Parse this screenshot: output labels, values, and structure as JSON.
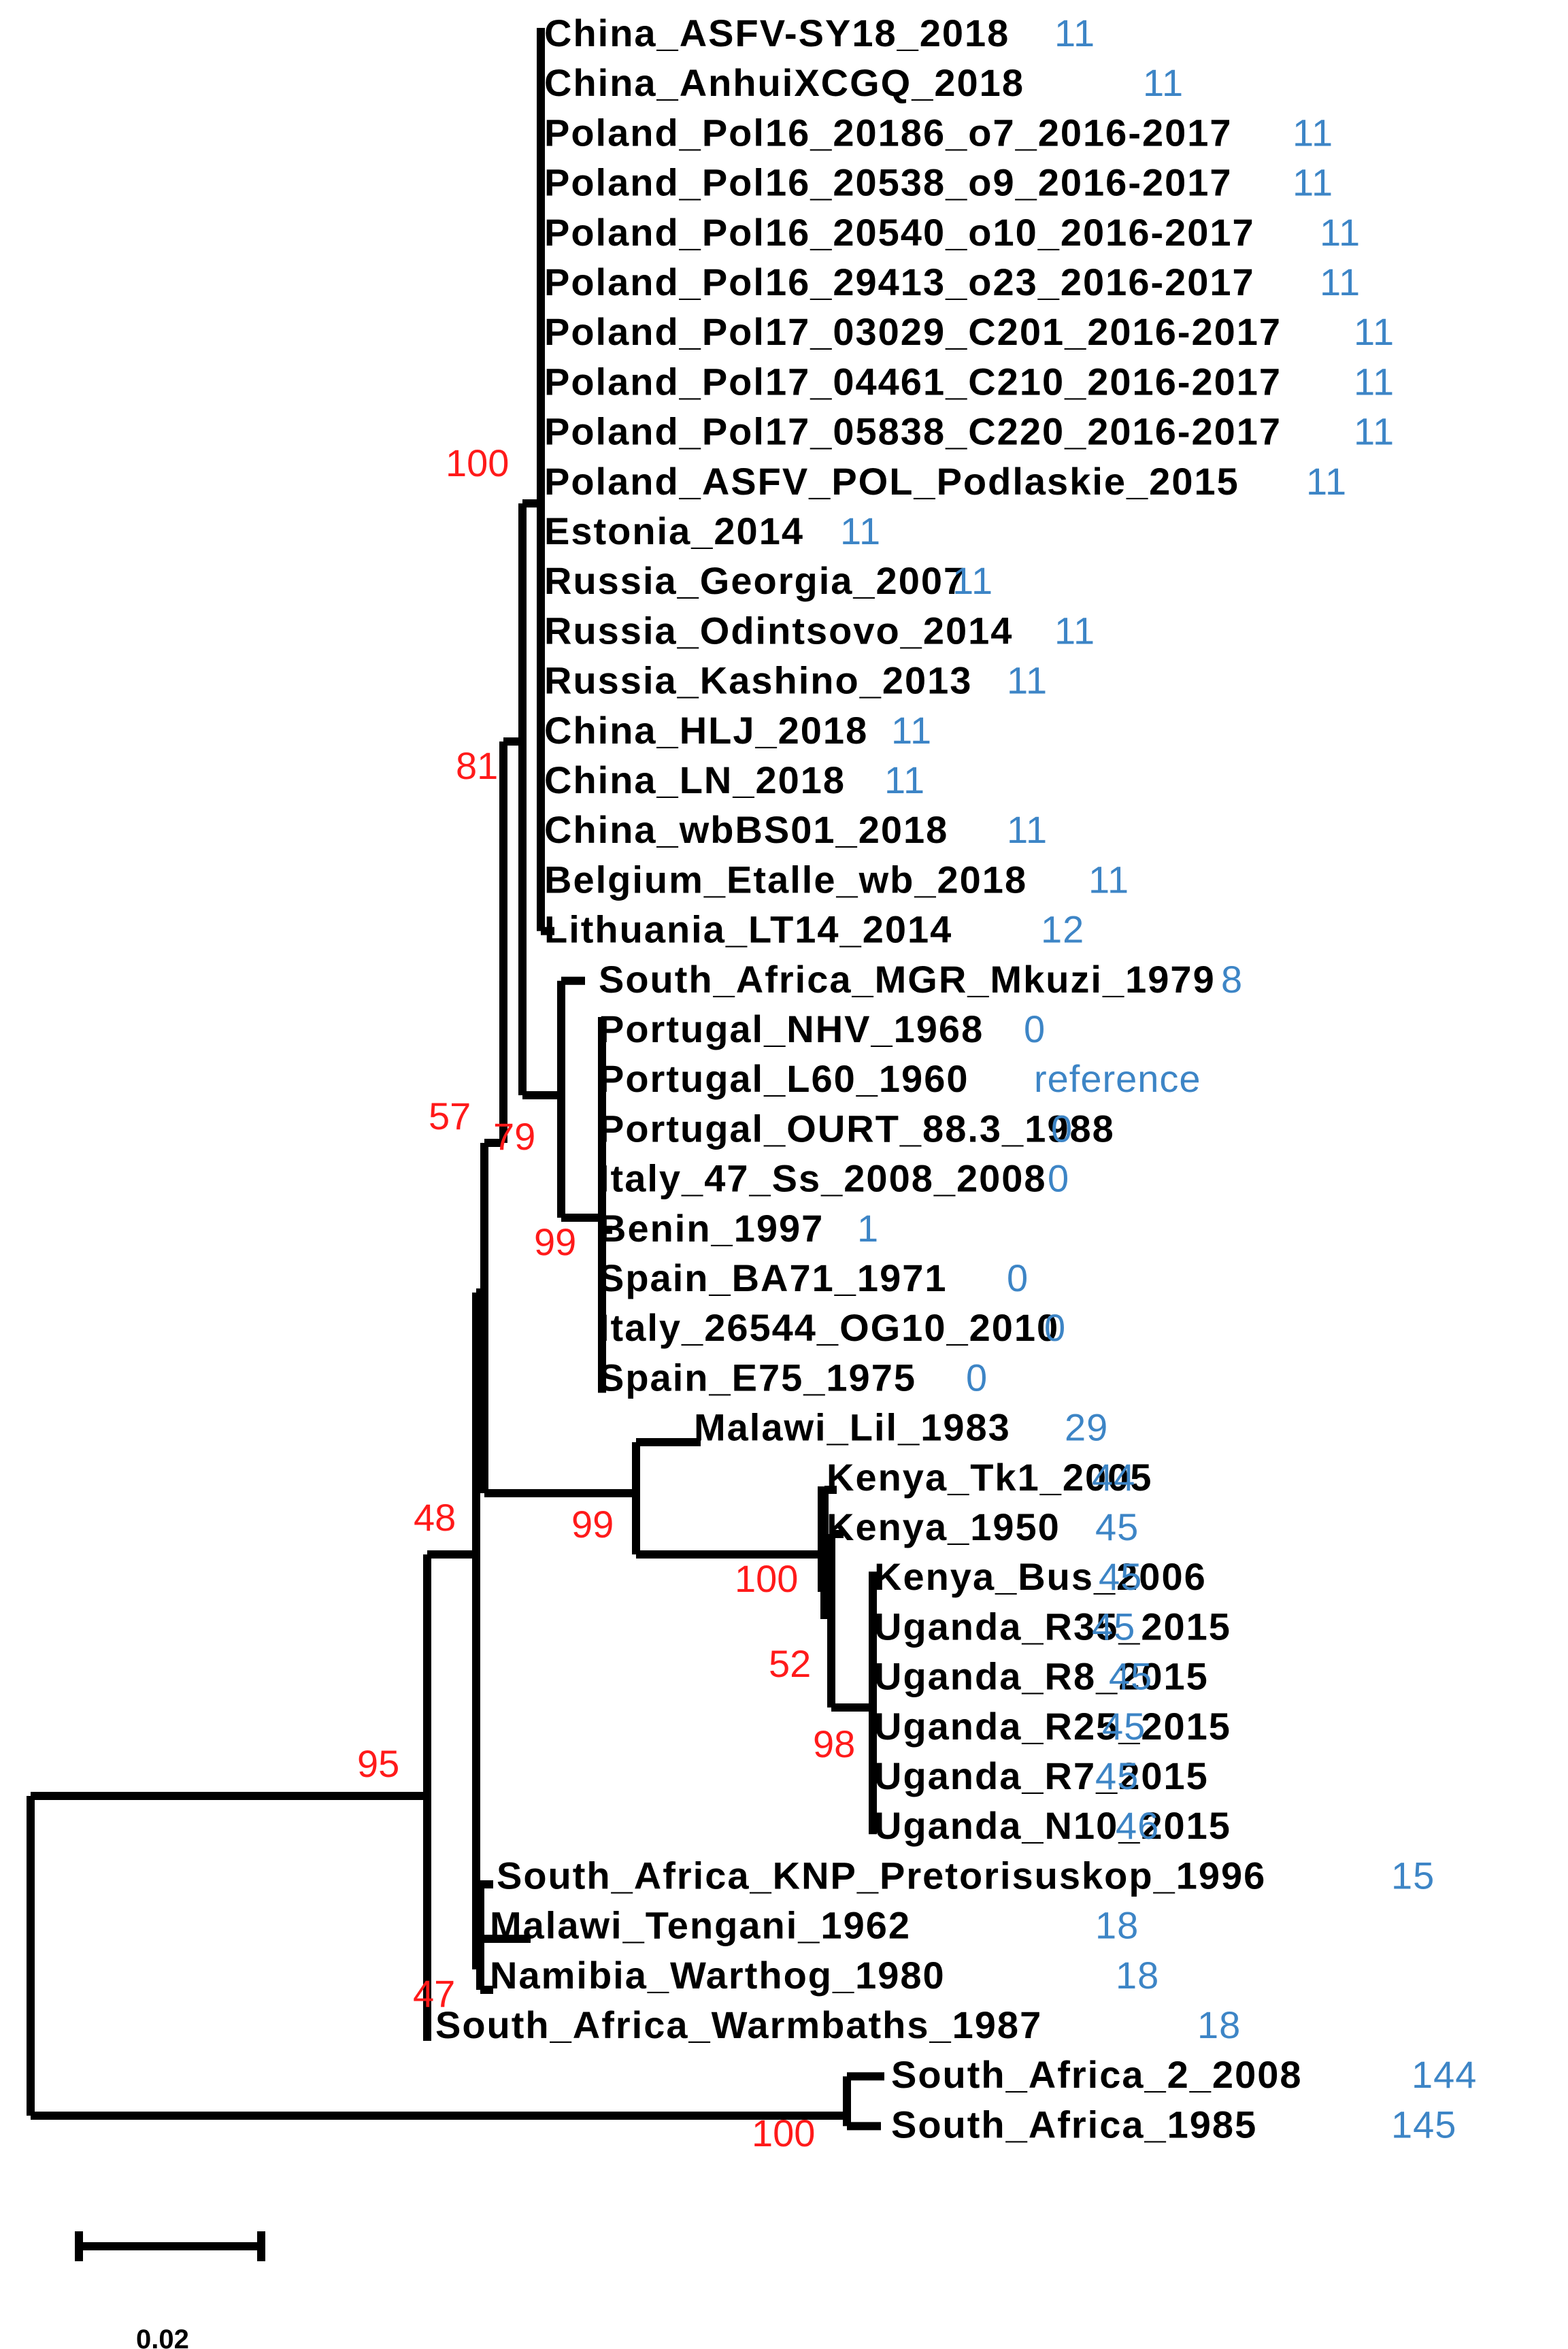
{
  "colors": {
    "branch": "#000000",
    "bootstrap": "#ff1a1a",
    "count": "#3d85c6"
  },
  "taxa": [
    {
      "name": "China_ASFV-SY18_2018",
      "count": "11"
    },
    {
      "name": "China_AnhuiXCGQ_2018",
      "count": "11"
    },
    {
      "name": "Poland_Pol16_20186_o7_2016-2017",
      "count": "11"
    },
    {
      "name": "Poland_Pol16_20538_o9_2016-2017",
      "count": "11"
    },
    {
      "name": "Poland_Pol16_20540_o10_2016-2017",
      "count": "11"
    },
    {
      "name": "Poland_Pol16_29413_o23_2016-2017",
      "count": "11"
    },
    {
      "name": "Poland_Pol17_03029_C201_2016-2017",
      "count": "11"
    },
    {
      "name": "Poland_Pol17_04461_C210_2016-2017",
      "count": "11"
    },
    {
      "name": "Poland_Pol17_05838_C220_2016-2017",
      "count": "11"
    },
    {
      "name": "Poland_ASFV_POL_Podlaskie_2015",
      "count": "11"
    },
    {
      "name": "Estonia_2014",
      "count": "11"
    },
    {
      "name": "Russia_Georgia_2007",
      "count": "11"
    },
    {
      "name": "Russia_Odintsovo_2014",
      "count": "11"
    },
    {
      "name": "Russia_Kashino_2013",
      "count": "11"
    },
    {
      "name": "China_HLJ_2018",
      "count": "11"
    },
    {
      "name": "China_LN_2018",
      "count": "11"
    },
    {
      "name": "China_wbBS01_2018",
      "count": "11"
    },
    {
      "name": "Belgium_Etalle_wb_2018",
      "count": "11"
    },
    {
      "name": "Lithuania_LT14_2014",
      "count": "12"
    },
    {
      "name": "South_Africa_MGR_Mkuzi_1979",
      "count": "8"
    },
    {
      "name": "Portugal_NHV_1968",
      "count": "0"
    },
    {
      "name": "Portugal_L60_1960",
      "count": "reference"
    },
    {
      "name": "Portugal_OURT_88.3_1988",
      "count": "0"
    },
    {
      "name": "Italy_47_Ss_2008_2008",
      "count": "0"
    },
    {
      "name": "Benin_1997",
      "count": "1"
    },
    {
      "name": "Spain_BA71_1971",
      "count": "0"
    },
    {
      "name": "Italy_26544_OG10_2010",
      "count": "0"
    },
    {
      "name": "Spain_E75_1975",
      "count": "0"
    },
    {
      "name": "Malawi_Lil_1983",
      "count": "29"
    },
    {
      "name": "Kenya_Tk1_2005",
      "count": "44"
    },
    {
      "name": "Kenya_1950",
      "count": "45"
    },
    {
      "name": "Kenya_Bus_2006",
      "count": "45"
    },
    {
      "name": "Uganda_R35_2015",
      "count": "45"
    },
    {
      "name": "Uganda_R8_2015",
      "count": "45"
    },
    {
      "name": "Uganda_R25_2015",
      "count": "45"
    },
    {
      "name": "Uganda_R7_2015",
      "count": "45"
    },
    {
      "name": "Uganda_N10_2015",
      "count": "46"
    },
    {
      "name": "South_Africa_KNP_Pretorisuskop_1996",
      "count": "15"
    },
    {
      "name": "Malawi_Tengani_1962",
      "count": "18"
    },
    {
      "name": "Namibia_Warthog_1980",
      "count": "18"
    },
    {
      "name": "South_Africa_Warmbaths_1987",
      "count": "18"
    },
    {
      "name": "South_Africa_2_2008",
      "count": "144"
    },
    {
      "name": "South_Africa_1985",
      "count": "145"
    }
  ],
  "bootstrap": [
    "100",
    "81",
    "57",
    "79",
    "99",
    "99",
    "100",
    "52",
    "98",
    "48",
    "95",
    "47",
    "100"
  ],
  "scale_bar": {
    "label": "0.02"
  }
}
